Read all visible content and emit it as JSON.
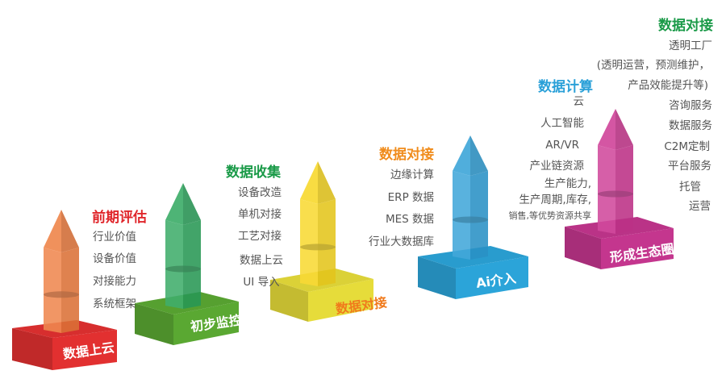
{
  "stages": [
    {
      "base_label": "数据上云",
      "title": "前期评估",
      "items": [
        "行业价值",
        "设备价值",
        "对接能力",
        "系统框架"
      ],
      "colors": {
        "title": "#e0262b",
        "base": "#e23030",
        "pillar": "#ee7b3c",
        "base_label": "#ffffff"
      }
    },
    {
      "base_label": "初步监控",
      "title": "数据收集",
      "items": [
        "设备改造",
        "单机对接",
        "工艺对接",
        "数据上云",
        "UI 导入"
      ],
      "colors": {
        "title": "#1a9a48",
        "base": "#5aa832",
        "pillar": "#2ba55c",
        "base_label": "#ffffff"
      }
    },
    {
      "base_label": "数据对接",
      "title": "数据对接",
      "items": [
        "边缘计算",
        "ERP 数据",
        "MES 数据",
        "行业大数据库"
      ],
      "colors": {
        "title": "#f08c1c",
        "base": "#e6dc3a",
        "pillar": "#f8d61e",
        "base_label": "#f07a1c"
      }
    },
    {
      "base_label": "Ai介入",
      "title": "数据计算",
      "items": [
        "云",
        "人工智能",
        "AR/VR",
        "产业链资源",
        "生产能力,",
        "生产周期,库存,",
        "销售,等优势资源共享"
      ],
      "colors": {
        "title": "#2aa0d8",
        "base": "#2ba4d9",
        "pillar": "#2e9ed6",
        "base_label": "#ffffff"
      }
    },
    {
      "base_label": "形成生态圈",
      "title": "数据对接",
      "items": [
        "透明工厂",
        "(透明运营，预测维护，",
        "产品效能提升等)",
        "咨询服务",
        "数据服务",
        "C2M定制",
        "平台服务",
        "托管",
        "运营"
      ],
      "colors": {
        "title": "#1a9a48",
        "base": "#c4368e",
        "pillar": "#cc3592",
        "base_label": "#ffffff"
      }
    }
  ]
}
